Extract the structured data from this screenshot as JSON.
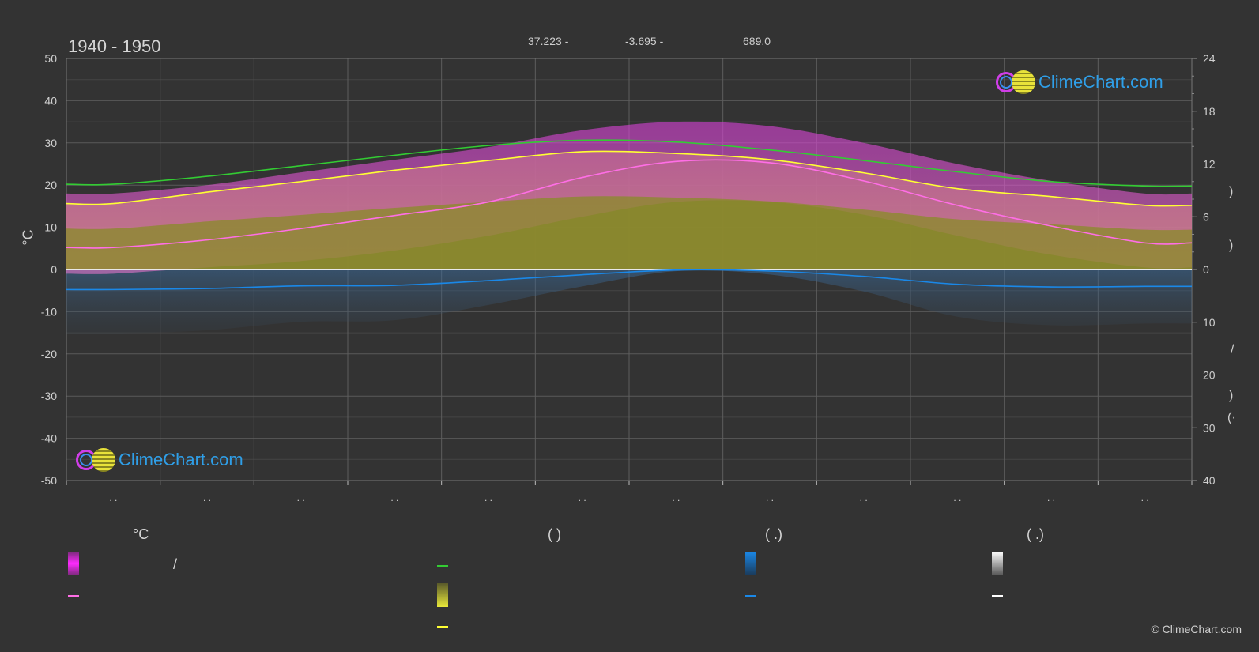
{
  "header": {
    "period": "1940 - 1950",
    "lat": "37.223 -",
    "lon": "-3.695 -",
    "elev": "689.0"
  },
  "brand": {
    "top_text": "ClimeChart.com",
    "bottom_text": "ClimeChart.com"
  },
  "copyright": "© ClimeChart.com",
  "axes": {
    "left_unit": "°C",
    "right_glyphs": [
      ")",
      ")",
      "/",
      ")",
      "(·"
    ],
    "x_tick_marks": ". ."
  },
  "legend": {
    "col1_head": "°C",
    "col2_head": "(          )",
    "col3_head": "(    .)",
    "col4_head": "(    .)",
    "col1_slash": "/",
    "colors": {
      "temp_range": "#e83ae8",
      "temp_mean": "#ff6ee6",
      "daylight": "#33cc33",
      "sunshine": "#e8e83a",
      "sunshine_mean": "#ffff33",
      "rain": "#1a88e8",
      "rain_mean": "#1a88e8",
      "snow": "#ffffff",
      "snow_mean": "#ffffff"
    }
  },
  "chart_data": {
    "type": "area",
    "x": [
      1,
      2,
      3,
      4,
      5,
      6,
      7,
      8,
      9,
      10,
      11,
      12
    ],
    "ylim_left": [
      -50,
      50
    ],
    "left_ticks": [
      50,
      40,
      30,
      20,
      10,
      0,
      -10,
      -20,
      -30,
      -40,
      -50
    ],
    "right_top_ticks": [
      24,
      18,
      12,
      6,
      0
    ],
    "right_bottom_ticks": [
      10,
      20,
      30,
      40
    ],
    "right_top_range": [
      0,
      24
    ],
    "right_bottom_range": [
      0,
      40
    ],
    "grid": true,
    "series": [
      {
        "key": "daylight",
        "axis": "right_top",
        "color": "#33cc33",
        "values": [
          9.7,
          10.6,
          11.8,
          13.0,
          14.1,
          14.7,
          14.5,
          13.6,
          12.4,
          11.1,
          10.0,
          9.5
        ]
      },
      {
        "key": "sunshine_mean",
        "axis": "right_top",
        "color": "#ffff33",
        "values": [
          7.5,
          8.8,
          10.0,
          11.3,
          12.4,
          13.4,
          13.2,
          12.5,
          11.0,
          9.2,
          8.3,
          7.3
        ]
      },
      {
        "key": "temp_mean",
        "axis": "left",
        "color": "#ff6ee6",
        "values": [
          5.2,
          7.0,
          9.7,
          12.8,
          16.0,
          21.8,
          25.6,
          25.3,
          21.0,
          15.2,
          10.3,
          6.3
        ]
      },
      {
        "key": "rain_mean",
        "axis": "right_bottom",
        "color": "#1a88e8",
        "values": [
          3.8,
          3.6,
          3.1,
          3.0,
          2.1,
          1.0,
          0.1,
          0.3,
          1.3,
          2.8,
          3.3,
          3.2
        ]
      }
    ],
    "bands": {
      "temp_max_values": [
        18.0,
        20.0,
        23.0,
        26.0,
        29.0,
        33.0,
        35.0,
        34.0,
        30.0,
        25.0,
        21.0,
        18.0
      ],
      "temp_min_values": [
        -1.0,
        0.5,
        2.0,
        4.5,
        8.0,
        12.5,
        16.0,
        16.0,
        13.0,
        8.0,
        3.5,
        0.5
      ],
      "sunshine_values": [
        7.5,
        8.8,
        10.0,
        11.3,
        12.4,
        13.4,
        13.2,
        12.5,
        11.0,
        9.2,
        8.3,
        7.3
      ]
    }
  }
}
